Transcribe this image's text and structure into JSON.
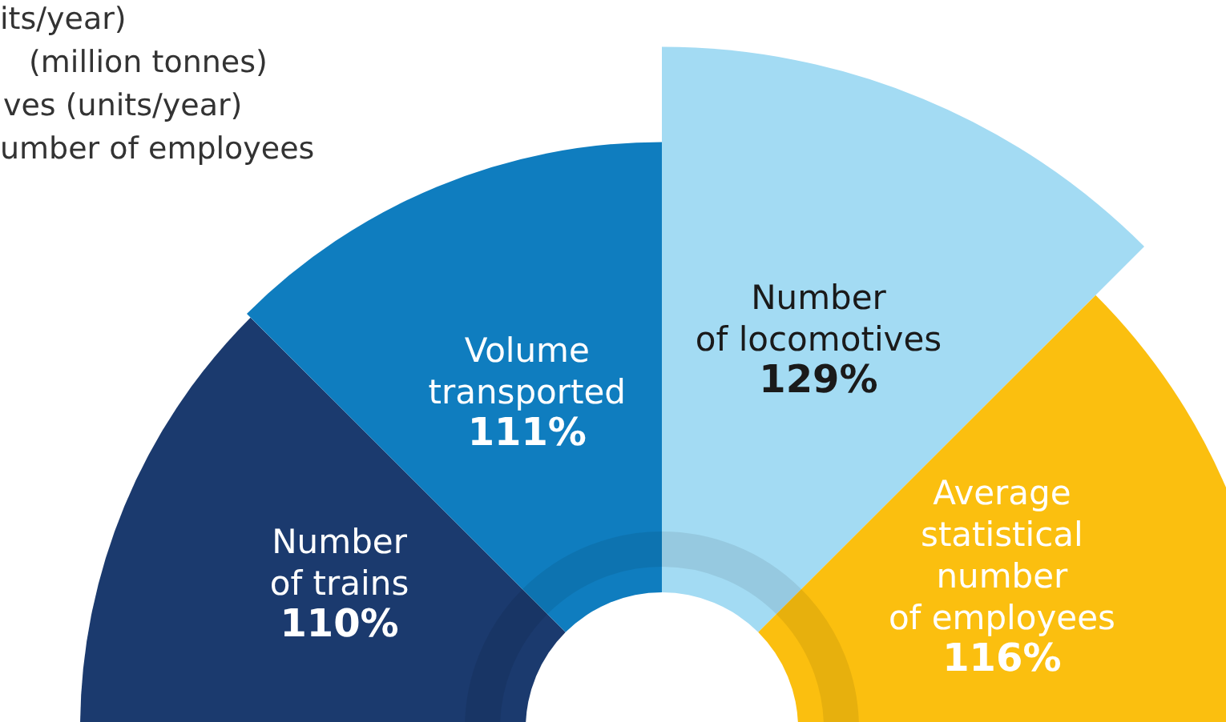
{
  "chart_data": {
    "type": "other",
    "categories": [
      "Number\nof trains",
      "Volume\ntransported",
      "Number\nof locomotives",
      "Average\nstatistical\nnumber\nof employees"
    ],
    "values": [
      110,
      111,
      129,
      116
    ],
    "value_labels": [
      "110%",
      "111%",
      "129%",
      "116%"
    ],
    "colors": [
      "#1b3a6e",
      "#0f7dbf",
      "#a3dbf3",
      "#fbbf0f"
    ],
    "annotations": [
      "its/year)",
      "(million tonnes)",
      "ves (units/year)",
      "umber of employees"
    ]
  }
}
